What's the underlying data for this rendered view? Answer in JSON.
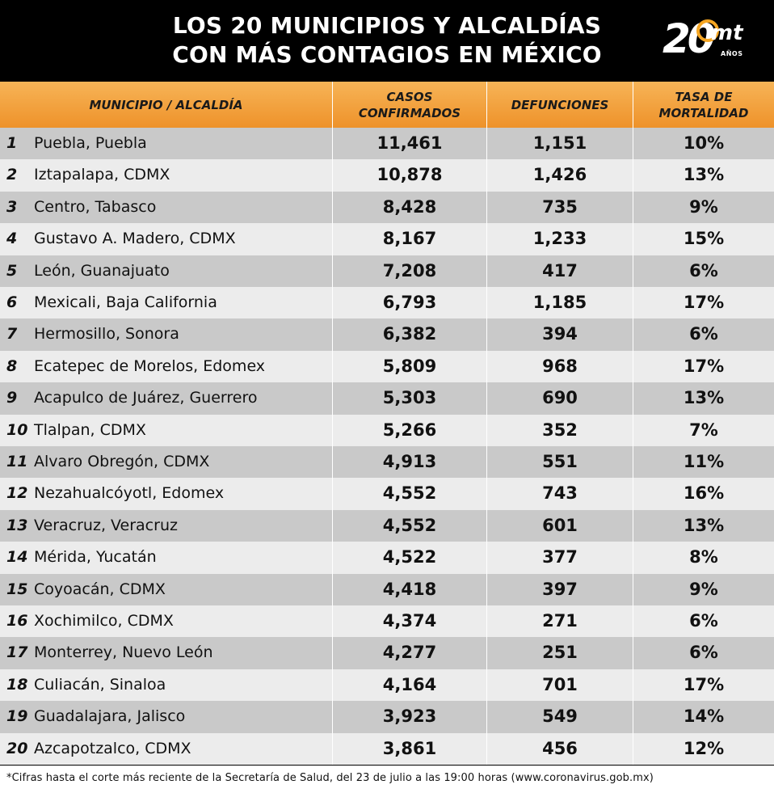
{
  "header": {
    "title_line1": "LOS 20 MUNICIPIOS Y ALCALDÍAS",
    "title_line2": "CON MÁS CONTAGIOS EN MÉXICO",
    "logo_number": "20",
    "logo_brand": "mt",
    "logo_sub": "AÑOS"
  },
  "columns": {
    "municipio": "MUNICIPIO / ALCALDÍA",
    "casos_line1": "CASOS",
    "casos_line2": "CONFIRMADOS",
    "defunciones": "DEFUNCIONES",
    "tasa_line1": "TASA DE",
    "tasa_line2": "MORTALIDAD"
  },
  "rows": [
    {
      "rank": "1",
      "name": "Puebla, Puebla",
      "casos": "11,461",
      "defunciones": "1,151",
      "tasa": "10%"
    },
    {
      "rank": "2",
      "name": "Iztapalapa, CDMX",
      "casos": "10,878",
      "defunciones": "1,426",
      "tasa": "13%"
    },
    {
      "rank": "3",
      "name": "Centro, Tabasco",
      "casos": "8,428",
      "defunciones": "735",
      "tasa": "9%"
    },
    {
      "rank": "4",
      "name": "Gustavo A. Madero, CDMX",
      "casos": "8,167",
      "defunciones": "1,233",
      "tasa": "15%"
    },
    {
      "rank": "5",
      "name": "León, Guanajuato",
      "casos": "7,208",
      "defunciones": "417",
      "tasa": "6%"
    },
    {
      "rank": "6",
      "name": "Mexicali, Baja California",
      "casos": "6,793",
      "defunciones": "1,185",
      "tasa": "17%"
    },
    {
      "rank": "7",
      "name": "Hermosillo, Sonora",
      "casos": "6,382",
      "defunciones": "394",
      "tasa": "6%"
    },
    {
      "rank": "8",
      "name": "Ecatepec de Morelos, Edomex",
      "casos": "5,809",
      "defunciones": "968",
      "tasa": "17%"
    },
    {
      "rank": "9",
      "name": "Acapulco de Juárez, Guerrero",
      "casos": "5,303",
      "defunciones": "690",
      "tasa": "13%"
    },
    {
      "rank": "10",
      "name": "Tlalpan, CDMX",
      "casos": "5,266",
      "defunciones": "352",
      "tasa": "7%"
    },
    {
      "rank": "11",
      "name": "Alvaro Obregón, CDMX",
      "casos": "4,913",
      "defunciones": "551",
      "tasa": "11%"
    },
    {
      "rank": "12",
      "name": "Nezahualcóyotl, Edomex",
      "casos": "4,552",
      "defunciones": "743",
      "tasa": "16%"
    },
    {
      "rank": "13",
      "name": "Veracruz, Veracruz",
      "casos": "4,552",
      "defunciones": "601",
      "tasa": "13%"
    },
    {
      "rank": "14",
      "name": "Mérida, Yucatán",
      "casos": "4,522",
      "defunciones": "377",
      "tasa": "8%"
    },
    {
      "rank": "15",
      "name": "Coyoacán, CDMX",
      "casos": "4,418",
      "defunciones": "397",
      "tasa": "9%"
    },
    {
      "rank": "16",
      "name": "Xochimilco, CDMX",
      "casos": "4,374",
      "defunciones": "271",
      "tasa": "6%"
    },
    {
      "rank": "17",
      "name": "Monterrey, Nuevo León",
      "casos": "4,277",
      "defunciones": "251",
      "tasa": "6%"
    },
    {
      "rank": "18",
      "name": "Culiacán, Sinaloa",
      "casos": "4,164",
      "defunciones": "701",
      "tasa": "17%"
    },
    {
      "rank": "19",
      "name": "Guadalajara, Jalisco",
      "casos": "3,923",
      "defunciones": "549",
      "tasa": "14%"
    },
    {
      "rank": "20",
      "name": "Azcapotzalco, CDMX",
      "casos": "3,861",
      "defunciones": "456",
      "tasa": "12%"
    }
  ],
  "footer": {
    "note": "*Cifras hasta el corte más reciente de la Secretaría de Salud, del 23 de julio a las 19:00 horas (www.coronavirus.gob.mx)"
  },
  "colors": {
    "header_bg": "#000000",
    "thead_orange": "#f0982f",
    "row_dark": "#c9c9c9",
    "row_light": "#ececec"
  }
}
